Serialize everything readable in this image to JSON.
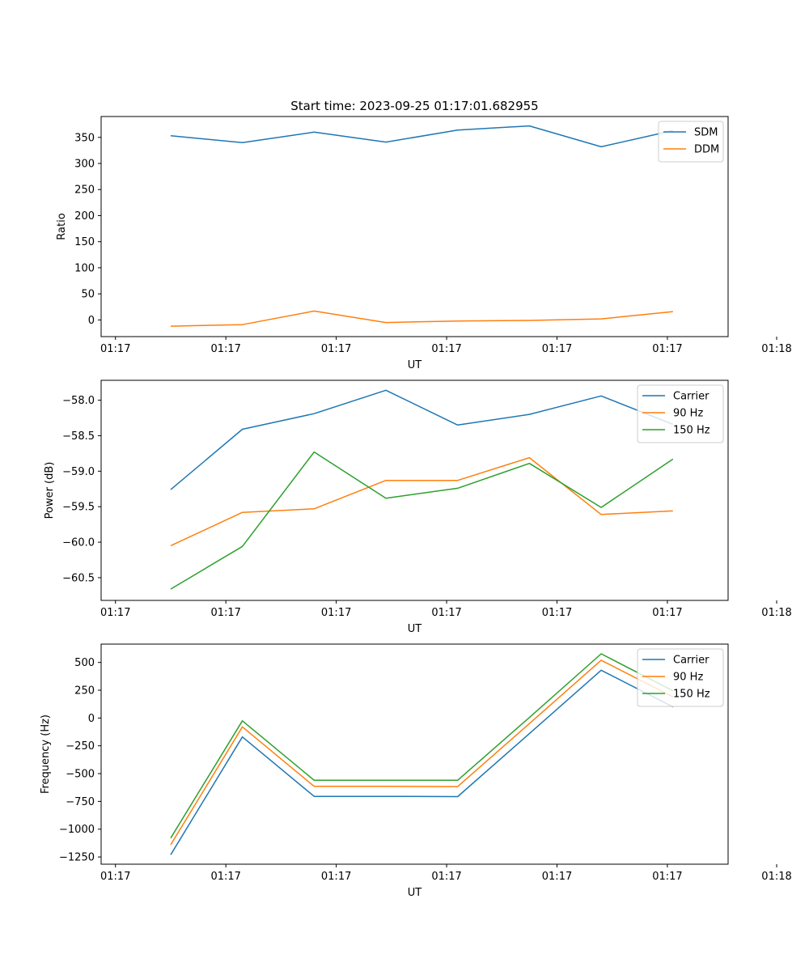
{
  "chart_data": [
    {
      "type": "line",
      "title": "Start time: 2023-09-25 01:17:01.682955",
      "xlabel": "UT",
      "ylabel": "Ratio",
      "xlim": [
        -0.13,
        5.55
      ],
      "ylim": [
        -32,
        390
      ],
      "x_ticks": [
        0,
        1,
        2,
        3,
        4,
        5
      ],
      "x_tick_labels": [
        "01:17",
        "01:17",
        "01:17",
        "01:17",
        "01:17",
        "01:17"
      ],
      "x_extra_tick": 5.99,
      "x_extra_tick_label": "01:18",
      "y_ticks": [
        0,
        50,
        100,
        150,
        200,
        250,
        300,
        350
      ],
      "x": [
        0.5,
        1.15,
        1.8,
        2.45,
        3.1,
        3.75,
        4.4,
        5.05
      ],
      "series": [
        {
          "name": "SDM",
          "color": "#1f77b4",
          "values": [
            353,
            340,
            360,
            341,
            364,
            372,
            332,
            363
          ]
        },
        {
          "name": "DDM",
          "color": "#ff7f0e",
          "values": [
            -12,
            -9,
            17,
            -5,
            -2,
            -1,
            2,
            16
          ]
        }
      ],
      "legend": "top-right"
    },
    {
      "type": "line",
      "title": "",
      "xlabel": "UT",
      "ylabel": "Power (dB)",
      "xlim": [
        -0.13,
        5.55
      ],
      "ylim": [
        -60.82,
        -57.72
      ],
      "x_ticks": [
        0,
        1,
        2,
        3,
        4,
        5
      ],
      "x_tick_labels": [
        "01:17",
        "01:17",
        "01:17",
        "01:17",
        "01:17",
        "01:17"
      ],
      "x_extra_tick": 5.99,
      "x_extra_tick_label": "01:18",
      "y_ticks": [
        -60.5,
        -60.0,
        -59.5,
        -59.0,
        -58.5,
        -58.0
      ],
      "y_tick_labels": [
        "−60.5",
        "−60.0",
        "−59.5",
        "−59.0",
        "−58.5",
        "−58.0"
      ],
      "x": [
        0.5,
        1.15,
        1.8,
        2.45,
        3.1,
        3.75,
        4.4,
        5.05
      ],
      "series": [
        {
          "name": "Carrier",
          "color": "#1f77b4",
          "values": [
            -59.26,
            -58.41,
            -58.19,
            -57.86,
            -58.35,
            -58.2,
            -57.94,
            -58.34
          ]
        },
        {
          "name": "90 Hz",
          "color": "#ff7f0e",
          "values": [
            -60.05,
            -59.58,
            -59.53,
            -59.13,
            -59.13,
            -58.81,
            -59.61,
            -59.56
          ]
        },
        {
          "name": "150 Hz",
          "color": "#2ca02c",
          "values": [
            -60.66,
            -60.06,
            -58.73,
            -59.38,
            -59.24,
            -58.89,
            -59.51,
            -58.83
          ]
        }
      ],
      "legend": "top-right"
    },
    {
      "type": "line",
      "title": "",
      "xlabel": "UT",
      "ylabel": "Frequency (Hz)",
      "xlim": [
        -0.13,
        5.55
      ],
      "ylim": [
        -1315,
        665
      ],
      "x_ticks": [
        0,
        1,
        2,
        3,
        4,
        5
      ],
      "x_tick_labels": [
        "01:17",
        "01:17",
        "01:17",
        "01:17",
        "01:17",
        "01:17"
      ],
      "x_extra_tick": 5.99,
      "x_extra_tick_label": "01:18",
      "y_ticks": [
        -1250,
        -1000,
        -750,
        -500,
        -250,
        0,
        250,
        500
      ],
      "y_tick_labels": [
        "−1250",
        "−1000",
        "−750",
        "−500",
        "−250",
        "0",
        "250",
        "500"
      ],
      "x": [
        0.5,
        1.15,
        1.8,
        2.45,
        3.1,
        3.75,
        4.4,
        5.05
      ],
      "series": [
        {
          "name": "Carrier",
          "color": "#1f77b4",
          "values": [
            -1230,
            -170,
            -705,
            -705,
            -707,
            -140,
            430,
            100
          ]
        },
        {
          "name": "90 Hz",
          "color": "#ff7f0e",
          "values": [
            -1140,
            -80,
            -615,
            -615,
            -617,
            -50,
            520,
            190
          ]
        },
        {
          "name": "150 Hz",
          "color": "#2ca02c",
          "values": [
            -1080,
            -25,
            -560,
            -560,
            -560,
            5,
            578,
            245
          ]
        }
      ],
      "legend": "top-right"
    }
  ]
}
